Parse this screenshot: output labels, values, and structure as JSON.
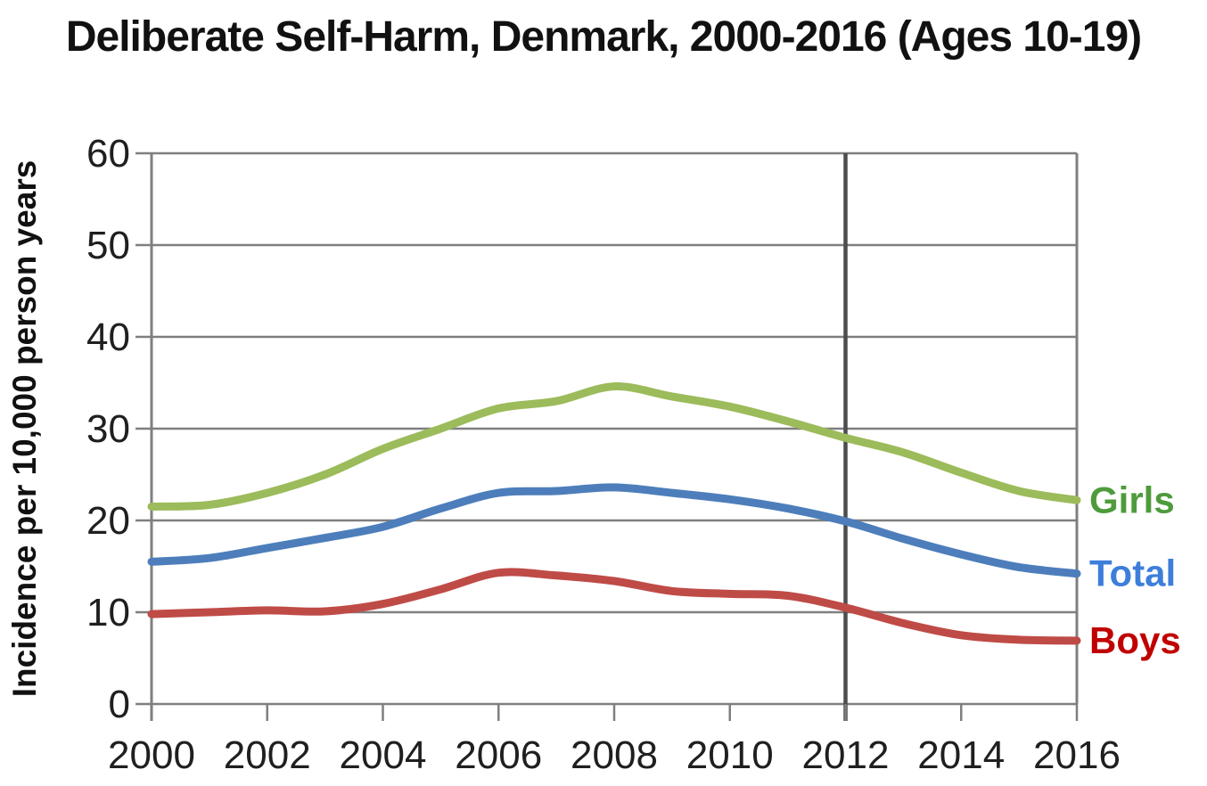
{
  "title": "Deliberate Self-Harm, Denmark, 2000-2016 (Ages 10-19)",
  "chart_data": {
    "type": "line",
    "title": "Deliberate Self-Harm, Denmark, 2000-2016 (Ages 10-19)",
    "ylabel": "Incidence per 10,000 person years",
    "xlabel": "",
    "x": [
      2000,
      2001,
      2002,
      2003,
      2004,
      2005,
      2006,
      2007,
      2008,
      2009,
      2010,
      2011,
      2012,
      2013,
      2014,
      2015,
      2016
    ],
    "series": [
      {
        "name": "Girls",
        "color": "#9CBB5B",
        "label_color": "#4E9B3C",
        "values": [
          21.5,
          21.7,
          23.0,
          25.0,
          27.8,
          30.0,
          32.2,
          33.0,
          34.6,
          33.5,
          32.4,
          30.8,
          29.0,
          27.4,
          25.2,
          23.2,
          22.2
        ]
      },
      {
        "name": "Total",
        "color": "#4D7EBB",
        "label_color": "#3D7EDB",
        "values": [
          15.5,
          15.9,
          17.0,
          18.1,
          19.3,
          21.3,
          23.0,
          23.2,
          23.6,
          23.0,
          22.3,
          21.3,
          19.9,
          18.0,
          16.3,
          14.9,
          14.2
        ]
      },
      {
        "name": "Boys",
        "color": "#BF4B47",
        "label_color": "#C00000",
        "values": [
          9.8,
          10.0,
          10.2,
          10.1,
          10.9,
          12.5,
          14.3,
          14.0,
          13.4,
          12.3,
          12.0,
          11.8,
          10.5,
          8.8,
          7.5,
          7.0,
          6.9
        ]
      }
    ],
    "xlim": [
      2000,
      2016
    ],
    "ylim": [
      0,
      60
    ],
    "y_ticks": [
      0,
      10,
      20,
      30,
      40,
      50,
      60
    ],
    "x_ticks": [
      2000,
      2002,
      2004,
      2006,
      2008,
      2010,
      2012,
      2014,
      2016
    ],
    "grid": "horizontal",
    "grid_color": "#7F7F7F",
    "text_color": "#1F1F1F",
    "annotation": {
      "vertical_line_x": 2012,
      "color": "#4D4D4D"
    },
    "legend_position": "right-end-of-lines"
  }
}
